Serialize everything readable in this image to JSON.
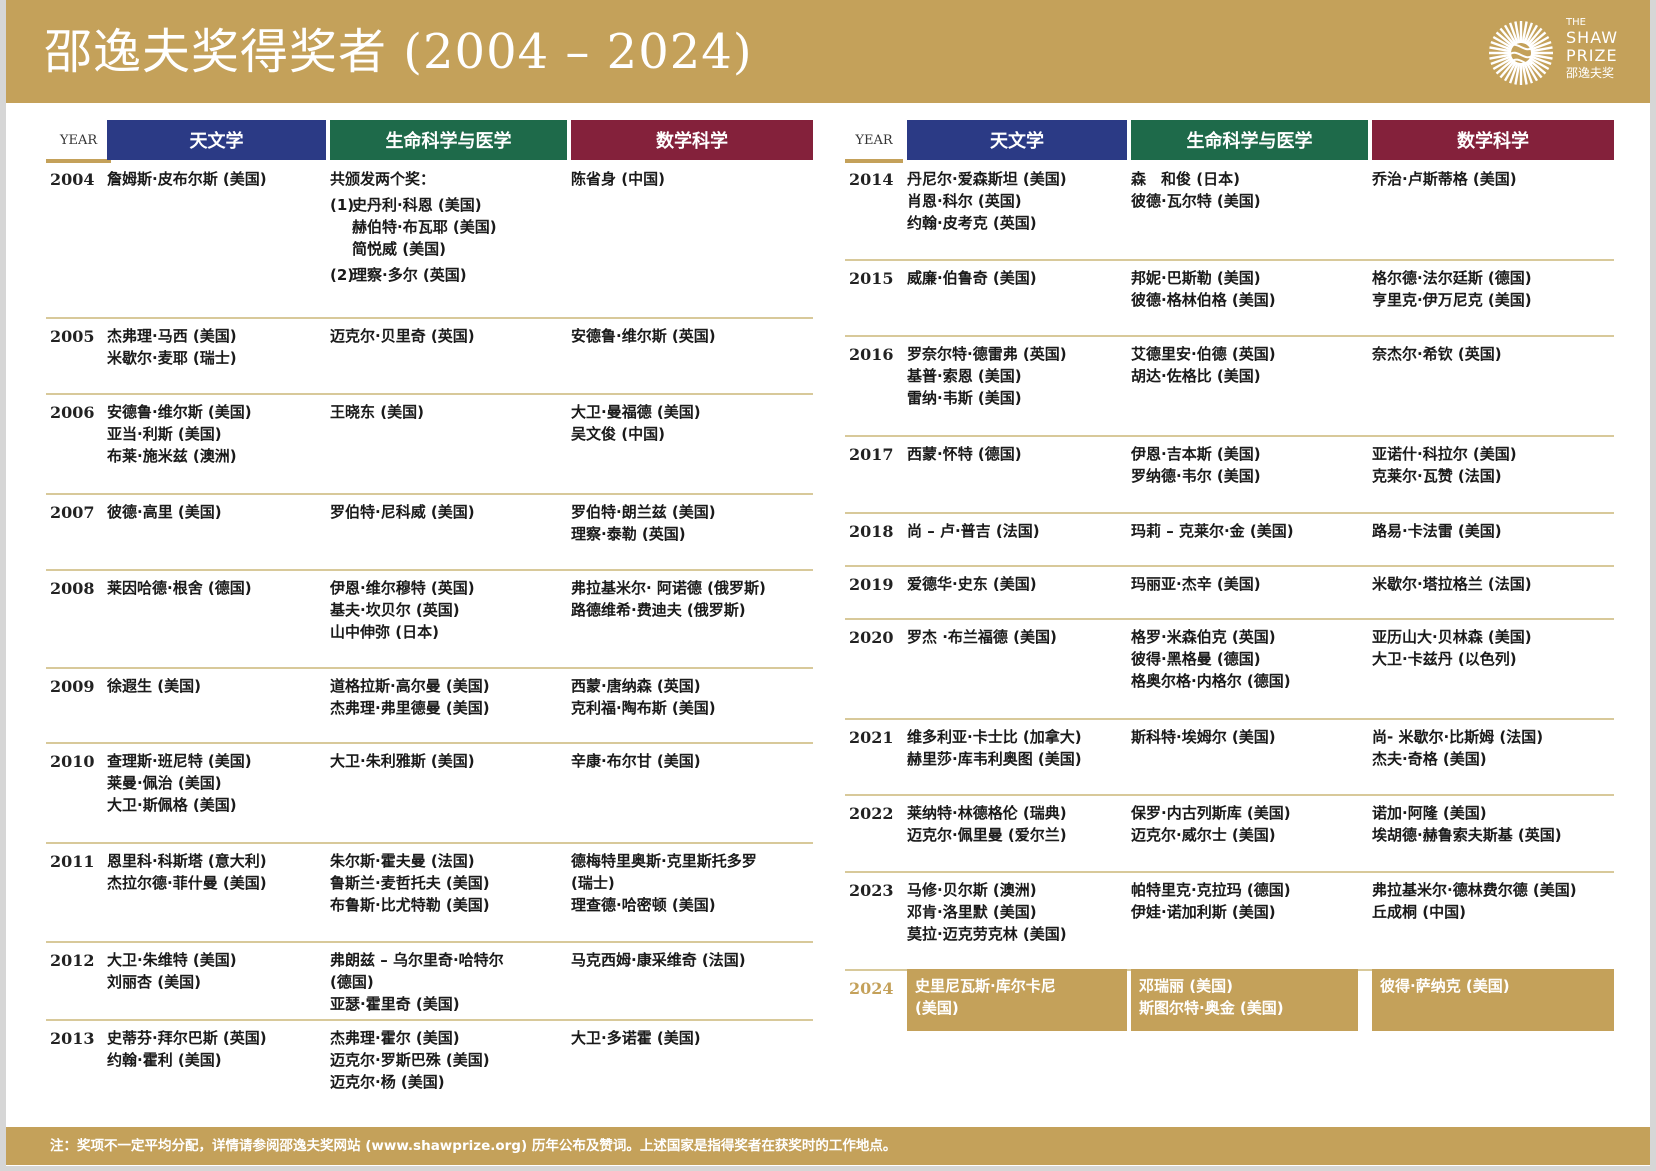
{
  "header": {
    "title": "邵逸夫奖得奖者 (2004 – 2024)",
    "logo": {
      "line1": "THE",
      "line2": "SHAW",
      "line3": "PRIZE",
      "line4": "邵逸夫奖"
    }
  },
  "colors": {
    "gold": "#c4a15a",
    "astronomy": "#2b3a85",
    "life_science": "#1e6a4a",
    "mathematics": "#84213b"
  },
  "columns": {
    "year": "YEAR",
    "astronomy": "天文学",
    "life_science": "生命科学与医学",
    "mathematics": "数学科学"
  },
  "award_2004_life": {
    "intro": "共颁发两个奖：",
    "groups": [
      {
        "label": "(1)",
        "names": [
          "史丹利·科恩 (美国)",
          "赫伯特·布瓦耶 (美国)",
          "简悦威 (美国)"
        ]
      },
      {
        "label": "(2)",
        "names": [
          "理察·多尔 (英国)"
        ]
      }
    ]
  },
  "left_table": [
    {
      "year": "2004",
      "astronomy": [
        "詹姆斯·皮布尔斯 (美国)"
      ],
      "life_science": [],
      "mathematics": [
        "陈省身 (中国)"
      ]
    },
    {
      "year": "2005",
      "astronomy": [
        "杰弗理·马西 (美国)",
        "米歇尔·麦耶 (瑞士)"
      ],
      "life_science": [
        "迈克尔·贝里奇 (英国)"
      ],
      "mathematics": [
        "安德鲁·维尔斯 (英国)"
      ]
    },
    {
      "year": "2006",
      "astronomy": [
        "安德鲁·维尔斯 (美国)",
        "亚当·利斯 (美国)",
        "布莱·施米兹 (澳洲)"
      ],
      "life_science": [
        "王晓东 (美国)"
      ],
      "mathematics": [
        "大卫·曼福德 (美国)",
        "吴文俊 (中国)"
      ]
    },
    {
      "year": "2007",
      "astronomy": [
        "彼德·高里 (美国)"
      ],
      "life_science": [
        "罗伯特·尼科威 (美国)"
      ],
      "mathematics": [
        "罗伯特·朗兰兹 (美国)",
        "理察·泰勒 (英国)"
      ]
    },
    {
      "year": "2008",
      "astronomy": [
        "莱因哈德·根舍 (德国)"
      ],
      "life_science": [
        "伊恩·维尔穆特 (英国)",
        "基夫·坎贝尔 (英国)",
        "山中伸弥 (日本)"
      ],
      "mathematics": [
        "弗拉基米尔· 阿诺德 (俄罗斯)",
        "路德维希·费迪夫 (俄罗斯)"
      ]
    },
    {
      "year": "2009",
      "astronomy": [
        "徐遐生 (美国)"
      ],
      "life_science": [
        "道格拉斯·高尔曼 (美国)",
        "杰弗理·弗里德曼 (美国)"
      ],
      "mathematics": [
        "西蒙·唐纳森 (英国)",
        "克利福·陶布斯 (美国)"
      ]
    },
    {
      "year": "2010",
      "astronomy": [
        "查理斯·班尼特 (美国)",
        "莱曼·佩治 (美国)",
        "大卫·斯佩格 (美国)"
      ],
      "life_science": [
        "大卫·朱利雅斯 (美国)"
      ],
      "mathematics": [
        "辛康·布尔甘 (美国)"
      ]
    },
    {
      "year": "2011",
      "astronomy": [
        "恩里科·科斯塔 (意大利)",
        "杰拉尔德·菲什曼 (美国)"
      ],
      "life_science": [
        "朱尔斯·霍夫曼 (法国)",
        "鲁斯兰·麦哲托夫 (美国)",
        "布鲁斯·比尤特勒 (美国)"
      ],
      "mathematics": [
        "德梅特里奥斯·克里斯托多罗",
        "(瑞士)",
        "理查德·哈密顿 (美国)"
      ]
    },
    {
      "year": "2012",
      "astronomy": [
        "大卫·朱维特 (美国)",
        "刘丽杏 (美国)"
      ],
      "life_science": [
        "弗朗兹 – 乌尔里奇·哈特尔",
        "(德国)",
        "亚瑟·霍里奇 (美国)"
      ],
      "mathematics": [
        "马克西姆·康采维奇 (法国)"
      ]
    },
    {
      "year": "2013",
      "astronomy": [
        "史蒂芬·拜尔巴斯 (英国)",
        "约翰·霍利 (美国)"
      ],
      "life_science": [
        "杰弗理·霍尔 (美国)",
        "迈克尔·罗斯巴殊 (美国)",
        "迈克尔·杨 (美国)"
      ],
      "mathematics": [
        "大卫·多诺霍 (美国)"
      ]
    }
  ],
  "right_table": [
    {
      "year": "2014",
      "astronomy": [
        "丹尼尔·爱森斯坦 (美国)",
        "肖恩·科尔 (英国)",
        "约翰·皮考克 (英国)"
      ],
      "life_science": [
        "森　和俊 (日本)",
        "彼德·瓦尔特 (美国)"
      ],
      "mathematics": [
        "乔治·卢斯蒂格 (美国)"
      ]
    },
    {
      "year": "2015",
      "astronomy": [
        "威廉·伯鲁奇 (美国)"
      ],
      "life_science": [
        "邦妮·巴斯勒 (美国)",
        "彼德·格林伯格 (美国)"
      ],
      "mathematics": [
        "格尔德·法尔廷斯 (德国)",
        "亨里克·伊万尼克 (美国)"
      ]
    },
    {
      "year": "2016",
      "astronomy": [
        "罗奈尔特·德雷弗 (英国)",
        "基普·索恩 (美国)",
        "雷纳·韦斯 (美国)"
      ],
      "life_science": [
        "艾德里安·伯德 (英国)",
        "胡达·佐格比 (美国)"
      ],
      "mathematics": [
        "奈杰尔·希钦 (英国)"
      ]
    },
    {
      "year": "2017",
      "astronomy": [
        "西蒙·怀特 (德国)"
      ],
      "life_science": [
        "伊恩·吉本斯 (美国)",
        "罗纳德·韦尔 (美国)"
      ],
      "mathematics": [
        "亚诺什·科拉尔 (美国)",
        "克莱尔·瓦赞 (法国)"
      ]
    },
    {
      "year": "2018",
      "astronomy": [
        "尚 – 卢·普吉 (法国)"
      ],
      "life_science": [
        "玛莉 – 克莱尔·金 (美国)"
      ],
      "mathematics": [
        "路易·卡法雷 (美国)"
      ]
    },
    {
      "year": "2019",
      "astronomy": [
        "爱德华·史东 (美国)"
      ],
      "life_science": [
        "玛丽亚·杰辛 (美国)"
      ],
      "mathematics": [
        "米歇尔·塔拉格兰 (法国)"
      ]
    },
    {
      "year": "2020",
      "astronomy": [
        "罗杰 ·布兰福德 (美国)"
      ],
      "life_science": [
        "格罗·米森伯克 (英国)",
        "彼得·黑格曼 (德国)",
        "格奥尔格·内格尔 (德国)"
      ],
      "mathematics": [
        "亚历山大·贝林森 (美国)",
        "大卫·卡兹丹 (以色列)"
      ]
    },
    {
      "year": "2021",
      "astronomy": [
        "维多利亚·卡士比 (加拿大)",
        "赫里莎·库韦利奥图 (美国)"
      ],
      "life_science": [
        "斯科特·埃姆尔 (美国)"
      ],
      "mathematics": [
        "尚- 米歇尔·比斯姆 (法国)",
        "杰夫·奇格 (美国)"
      ]
    },
    {
      "year": "2022",
      "astronomy": [
        "莱纳特·林德格伦 (瑞典)",
        "迈克尔·佩里曼 (爱尔兰)"
      ],
      "life_science": [
        "保罗·内古列斯库 (美国)",
        "迈克尔·威尔士 (美国)"
      ],
      "mathematics": [
        "诺加·阿隆 (美国)",
        "埃胡德·赫鲁索夫斯基 (英国)"
      ]
    },
    {
      "year": "2023",
      "astronomy": [
        "马修·贝尔斯 (澳洲)",
        "邓肯·洛里默 (美国)",
        "莫拉·迈克劳克林 (美国)"
      ],
      "life_science": [
        "帕特里克·克拉玛 (德国)",
        "伊娃·诺加利斯 (美国)"
      ],
      "mathematics": [
        "弗拉基米尔·德林费尔德 (美国)",
        "丘成桐 (中国)"
      ]
    },
    {
      "year": "2024",
      "highlight": true,
      "astronomy": [
        "史里尼瓦斯·库尔卡尼",
        "(美国)"
      ],
      "life_science": [
        "邓瑞丽 (美国)",
        "斯图尔特·奥金 (美国)"
      ],
      "mathematics": [
        "彼得·萨纳克 (美国)"
      ]
    }
  ],
  "footer": {
    "note": "注：奖项不一定平均分配，详情请参阅邵逸夫奖网站 (www.shawprize.org) 历年公布及赞词。上述国家是指得奖者在获奖时的工作地点。"
  }
}
